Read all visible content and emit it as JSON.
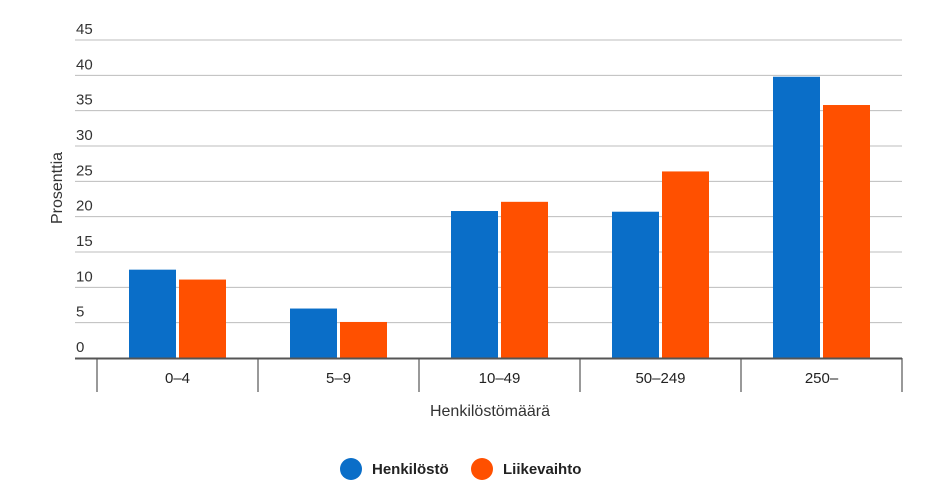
{
  "chart_data": {
    "type": "bar",
    "categories": [
      "0–4",
      "5–9",
      "10–49",
      "50–249",
      "250–"
    ],
    "series": [
      {
        "name": "Henkilöstö",
        "color": "#0a6ec8",
        "values": [
          12.5,
          7,
          20.8,
          20.7,
          39.8
        ]
      },
      {
        "name": "Liikevaihto",
        "color": "#ff5000",
        "values": [
          11.1,
          5.1,
          22.1,
          26.4,
          35.8
        ]
      }
    ],
    "xlabel": "Henkilöstömäärä",
    "ylabel": "Prosenttia",
    "ylim": [
      0,
      45
    ],
    "yticks": [
      "0",
      "5",
      "10",
      "15",
      "20",
      "25",
      "30",
      "35",
      "40",
      "45"
    ],
    "grid": true,
    "legend_position": "bottom-center"
  }
}
